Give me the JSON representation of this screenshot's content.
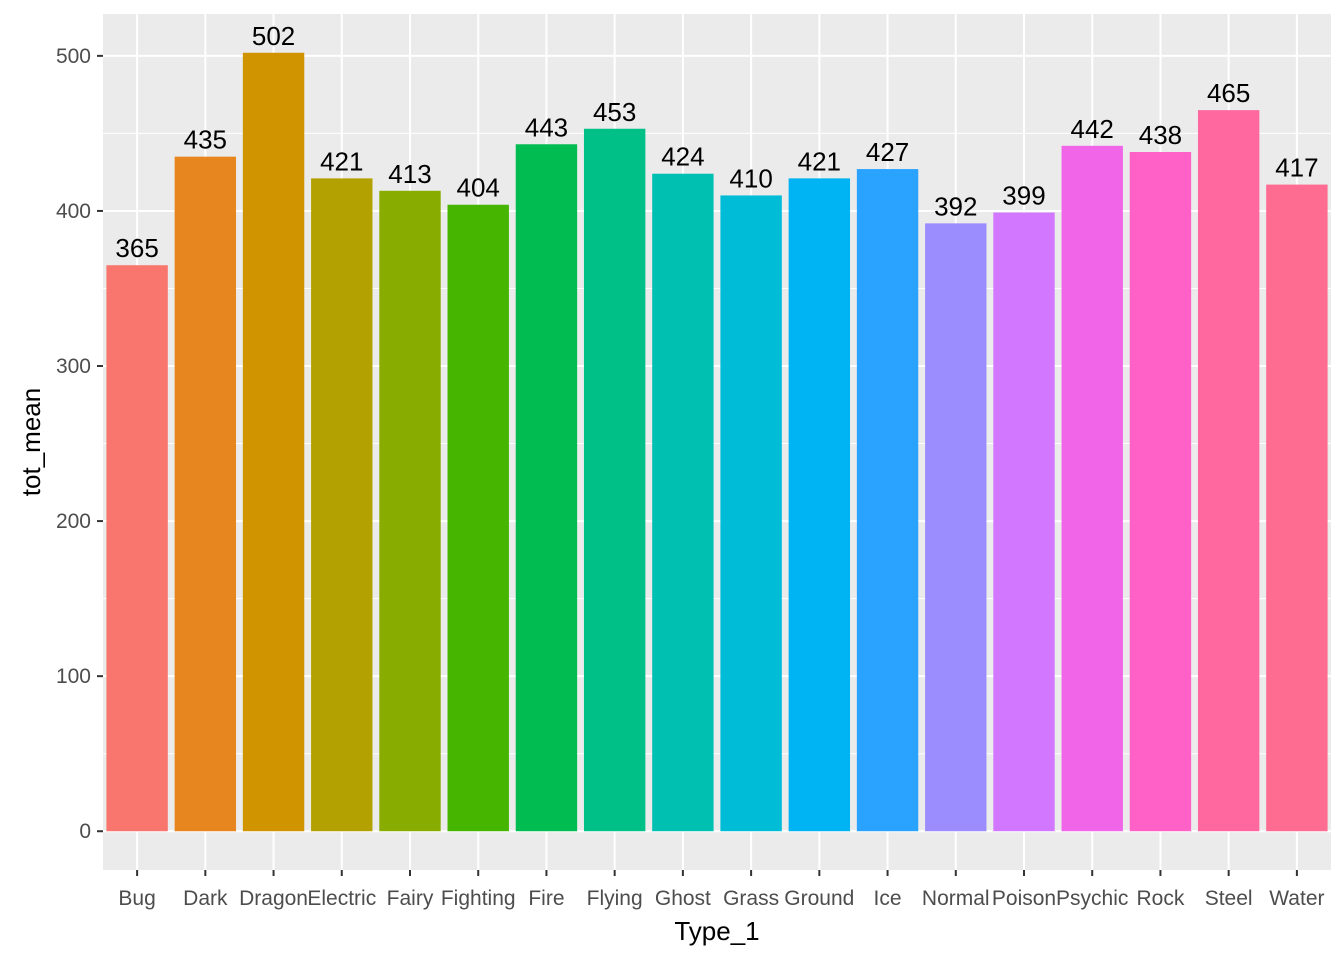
{
  "chart_data": {
    "type": "bar",
    "categories": [
      "Bug",
      "Dark",
      "Dragon",
      "Electric",
      "Fairy",
      "Fighting",
      "Fire",
      "Flying",
      "Ghost",
      "Grass",
      "Ground",
      "Ice",
      "Normal",
      "Poison",
      "Psychic",
      "Rock",
      "Steel",
      "Water"
    ],
    "values": [
      365,
      435,
      502,
      421,
      413,
      404,
      443,
      453,
      424,
      410,
      421,
      427,
      392,
      399,
      442,
      438,
      465,
      417
    ],
    "data_labels": [
      "365",
      "435",
      "502",
      "421",
      "413",
      "404",
      "443",
      "453",
      "424",
      "410",
      "421",
      "427",
      "392",
      "399",
      "442",
      "438",
      "465",
      "417"
    ],
    "colors": [
      "#F8766D",
      "#E7851E",
      "#D09400",
      "#B2A100",
      "#89AC00",
      "#45B500",
      "#00BC51",
      "#00C087",
      "#00C0B2",
      "#00BCD6",
      "#00B3F2",
      "#29A3FF",
      "#9C8DFF",
      "#D277FF",
      "#F166E8",
      "#FF61C7",
      "#FF689E",
      "#FF6C91"
    ],
    "xlabel": "Type_1",
    "ylabel": "tot_mean",
    "y_ticks": [
      0,
      100,
      200,
      300,
      400,
      500
    ],
    "y_tick_labels": [
      "0",
      "100",
      "200",
      "300",
      "400",
      "500"
    ],
    "ylim": [
      -25,
      527
    ],
    "grid": true,
    "panel_background": "#EBEBEB",
    "grid_color": "#FFFFFF"
  }
}
